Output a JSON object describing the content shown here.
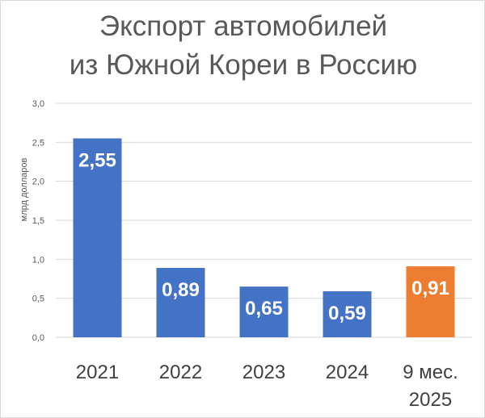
{
  "chart_data": {
    "type": "bar",
    "title_lines": [
      "Экспорт автомобилей",
      "из Южной Кореи в Россию"
    ],
    "ylabel": "млрд долларов",
    "xlabel": "",
    "ylim": [
      0,
      3.0
    ],
    "yticks": [
      "0,0",
      "0,5",
      "1,0",
      "1,5",
      "2,0",
      "2,5",
      "3,0"
    ],
    "ytick_values": [
      0,
      0.5,
      1.0,
      1.5,
      2.0,
      2.5,
      3.0
    ],
    "categories": [
      [
        "2021"
      ],
      [
        "2022"
      ],
      [
        "2023"
      ],
      [
        "2024"
      ],
      [
        "9 мес.",
        "2025"
      ]
    ],
    "values": [
      2.55,
      0.89,
      0.65,
      0.59,
      0.91
    ],
    "data_labels": [
      "2,55",
      "0,89",
      "0,65",
      "0,59",
      "0,91"
    ],
    "bar_colors": [
      "#4472c4",
      "#4472c4",
      "#4472c4",
      "#4472c4",
      "#ed7d31"
    ],
    "grid": true,
    "legend": "none"
  }
}
